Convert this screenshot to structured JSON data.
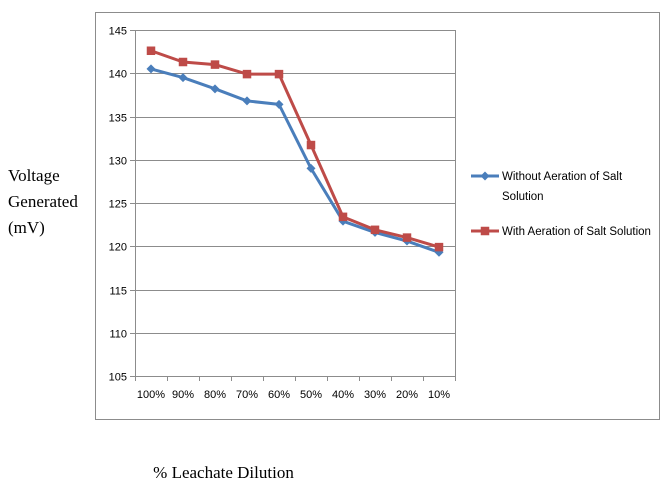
{
  "chart_data": {
    "type": "line",
    "title": "",
    "xlabel": "% Leachate Dilution",
    "ylabel": "Voltage\nGenerated\n(mV)",
    "categories": [
      "100%",
      "90%",
      "80%",
      "70%",
      "60%",
      "50%",
      "40%",
      "30%",
      "20%",
      "10%"
    ],
    "ylim": [
      105,
      145
    ],
    "yticks": [
      105,
      110,
      115,
      120,
      125,
      130,
      135,
      140,
      145
    ],
    "grid": "horizontal",
    "legend_position": "right",
    "series": [
      {
        "name": "Without Aeration of Salt Solution",
        "legend_lines": [
          "Without Aeration of Salt",
          "Solution"
        ],
        "color": "#4a7ebb",
        "marker": "diamond",
        "values": [
          140.5,
          139.5,
          138.2,
          136.8,
          136.4,
          129.0,
          122.9,
          121.6,
          120.6,
          119.3
        ]
      },
      {
        "name": "With Aeration of Salt Solution",
        "legend_lines": [
          "With Aeration of Salt Solution"
        ],
        "color": "#be4b48",
        "marker": "square",
        "values": [
          142.6,
          141.3,
          141.0,
          139.9,
          139.9,
          131.7,
          123.4,
          121.9,
          121.0,
          119.9
        ]
      }
    ]
  }
}
